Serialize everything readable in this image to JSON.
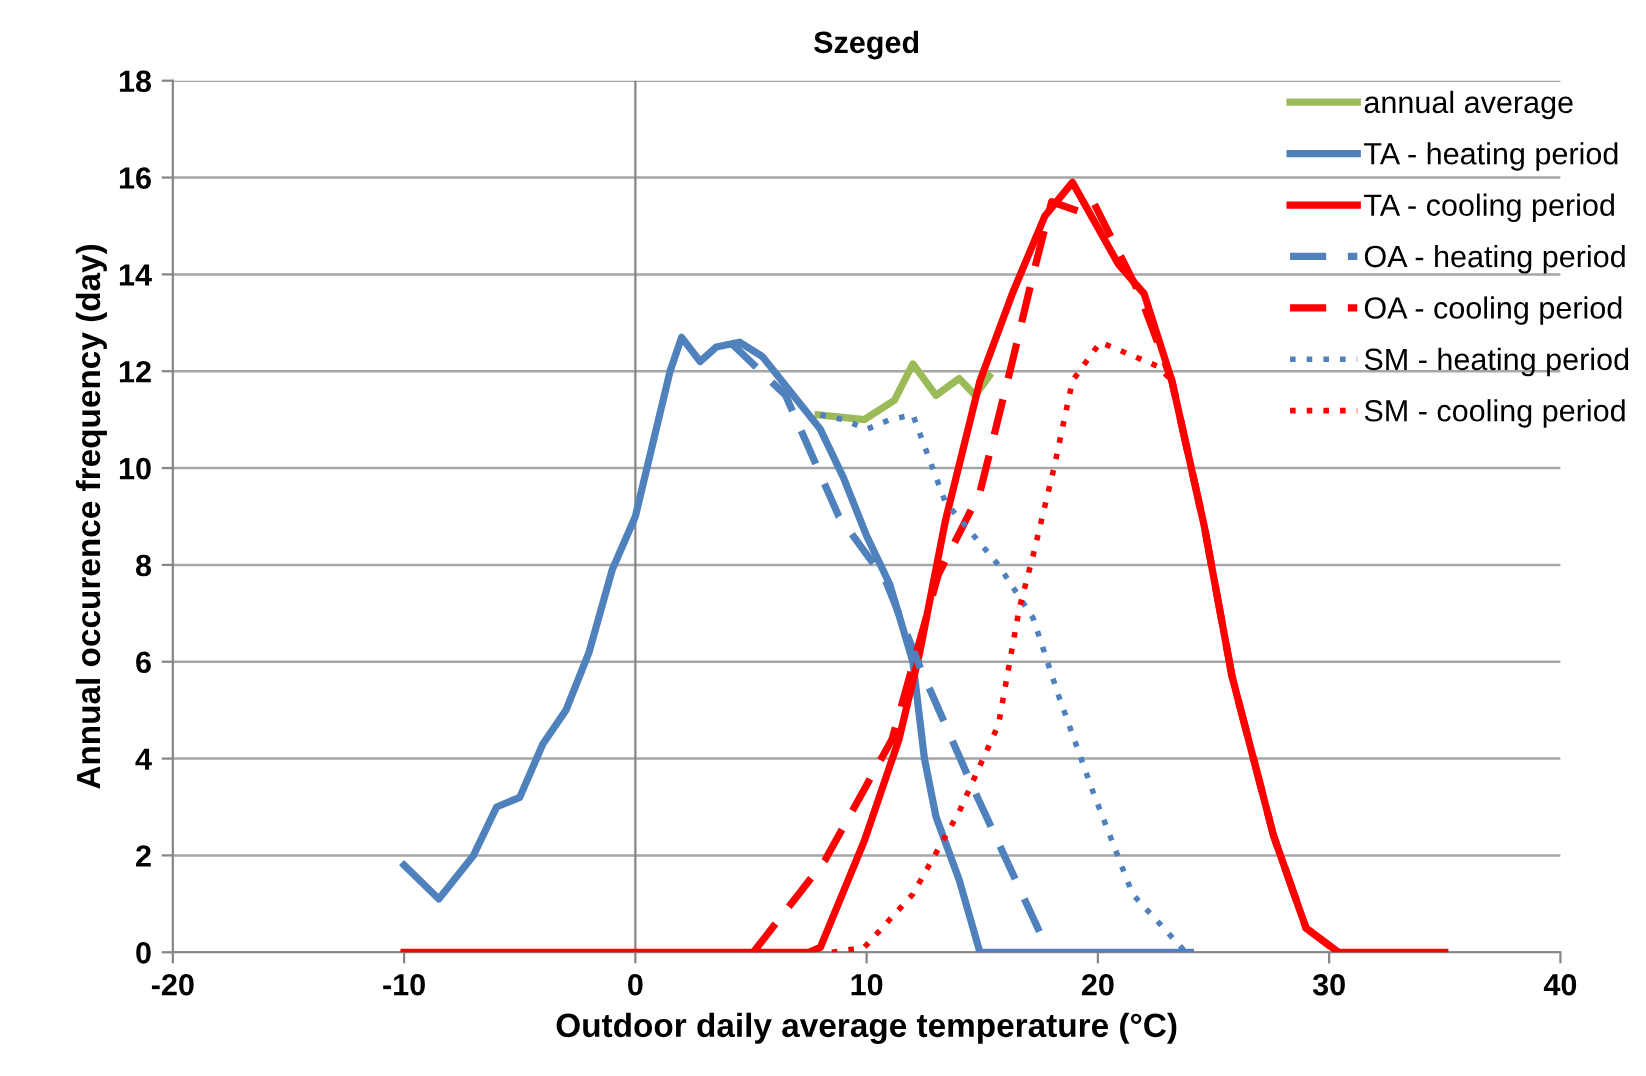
{
  "chart_data": {
    "type": "line",
    "title": "Szeged",
    "xlabel": "Outdoor daily average temperature (°C)",
    "ylabel": "Annual occurence frequency (day)",
    "xlim": [
      -20,
      40
    ],
    "xticks": [
      -20,
      -10,
      0,
      10,
      20,
      30,
      40
    ],
    "ylim": [
      0,
      18
    ],
    "yticks": [
      0,
      2,
      4,
      6,
      8,
      10,
      12,
      14,
      16,
      18
    ],
    "grid": "y",
    "legend": "top right",
    "marker": "none",
    "ref_lines": [
      {
        "axis": "x",
        "value": 0,
        "label": null,
        "color": "#868686"
      }
    ],
    "series": [
      {
        "name": "annual average",
        "color": "#9bbb59",
        "line_style": "solid",
        "x": [
          7.9,
          9.9,
          11.2,
          12,
          13,
          14,
          14.7,
          15.3
        ],
        "values": [
          11.1,
          11.0,
          11.4,
          12.15,
          11.5,
          11.85,
          11.5,
          11.9
        ]
      },
      {
        "name": "TA - heating period",
        "color": "#4f81bd",
        "line_style": "solid",
        "x": [
          -10,
          -8.5,
          -7,
          -6,
          -5,
          -4,
          -3,
          -2,
          -1,
          0,
          0.5,
          1.5,
          2,
          2.8,
          3.5,
          4.5,
          5.5,
          6.5,
          8,
          9,
          10,
          11,
          12,
          12.5,
          13,
          14,
          14.9,
          16,
          20,
          24
        ],
        "values": [
          1.8,
          1.1,
          2.0,
          3.0,
          3.2,
          4.3,
          5.0,
          6.2,
          7.9,
          9.0,
          10.0,
          12.0,
          12.7,
          12.2,
          12.5,
          12.6,
          12.3,
          11.7,
          10.8,
          9.8,
          8.6,
          7.6,
          6.0,
          4.0,
          2.8,
          1.5,
          0,
          0,
          0,
          0
        ]
      },
      {
        "name": "TA - cooling period",
        "color": "#ff0000",
        "line_style": "solid",
        "x": [
          -10,
          0,
          7.5,
          8,
          9.9,
          11.4,
          12.3,
          13.4,
          14.9,
          16.3,
          17.7,
          18.9,
          20.9,
          22,
          23.2,
          24.6,
          25.8,
          27.6,
          29,
          30.4,
          35
        ],
        "values": [
          0,
          0,
          0,
          0.1,
          2.3,
          4.4,
          6.2,
          8.9,
          11.8,
          13.6,
          15.2,
          15.9,
          14.2,
          13.6,
          11.8,
          8.8,
          5.7,
          2.4,
          0.5,
          0,
          0
        ]
      },
      {
        "name": "OA - heating period",
        "color": "#4f81bd",
        "line_style": "dashed",
        "x": [
          4.1,
          6.5,
          8.8,
          10.8,
          12.3,
          14.6,
          17.5,
          17.8
        ],
        "values": [
          12.6,
          11.5,
          9.0,
          7.7,
          5.9,
          3.4,
          0.4,
          0
        ]
      },
      {
        "name": "OA - cooling period",
        "color": "#ff0000",
        "line_style": "dashed",
        "x": [
          5.1,
          8.2,
          11.1,
          13.1,
          14.9,
          16.3,
          17.2,
          18.0,
          19.2,
          19.8,
          21.8,
          23.2,
          24.6,
          25.8,
          27.6,
          29,
          30.4
        ],
        "values": [
          0,
          1.9,
          4.4,
          7.8,
          9.5,
          12.2,
          14.0,
          15.5,
          15.3,
          15.5,
          13.6,
          11.8,
          8.8,
          5.7,
          2.4,
          0.5,
          0
        ]
      },
      {
        "name": "SM - heating period",
        "color": "#4f81bd",
        "line_style": "dotted",
        "x": [
          8,
          9,
          10,
          11,
          12,
          13.4,
          15.7,
          17.2,
          18.3,
          19.8,
          21.5,
          23.8
        ],
        "values": [
          11.1,
          11.0,
          10.8,
          11.0,
          11.1,
          9.3,
          8.0,
          6.9,
          5.3,
          3.3,
          1.2,
          0
        ]
      },
      {
        "name": "SM - cooling period",
        "color": "#ff0000",
        "line_style": "dotted",
        "x": [
          8.5,
          9.9,
          12,
          14,
          15.7,
          16.6,
          17.2,
          18.1,
          18.9,
          20.1,
          22.6,
          23.2,
          24.6,
          25.8,
          27.6,
          29,
          30.4
        ],
        "values": [
          0,
          0.1,
          1.2,
          2.9,
          4.7,
          7.1,
          8.2,
          10.0,
          11.8,
          12.6,
          12.1,
          11.8,
          8.8,
          5.7,
          2.4,
          0.5,
          0
        ]
      }
    ]
  }
}
